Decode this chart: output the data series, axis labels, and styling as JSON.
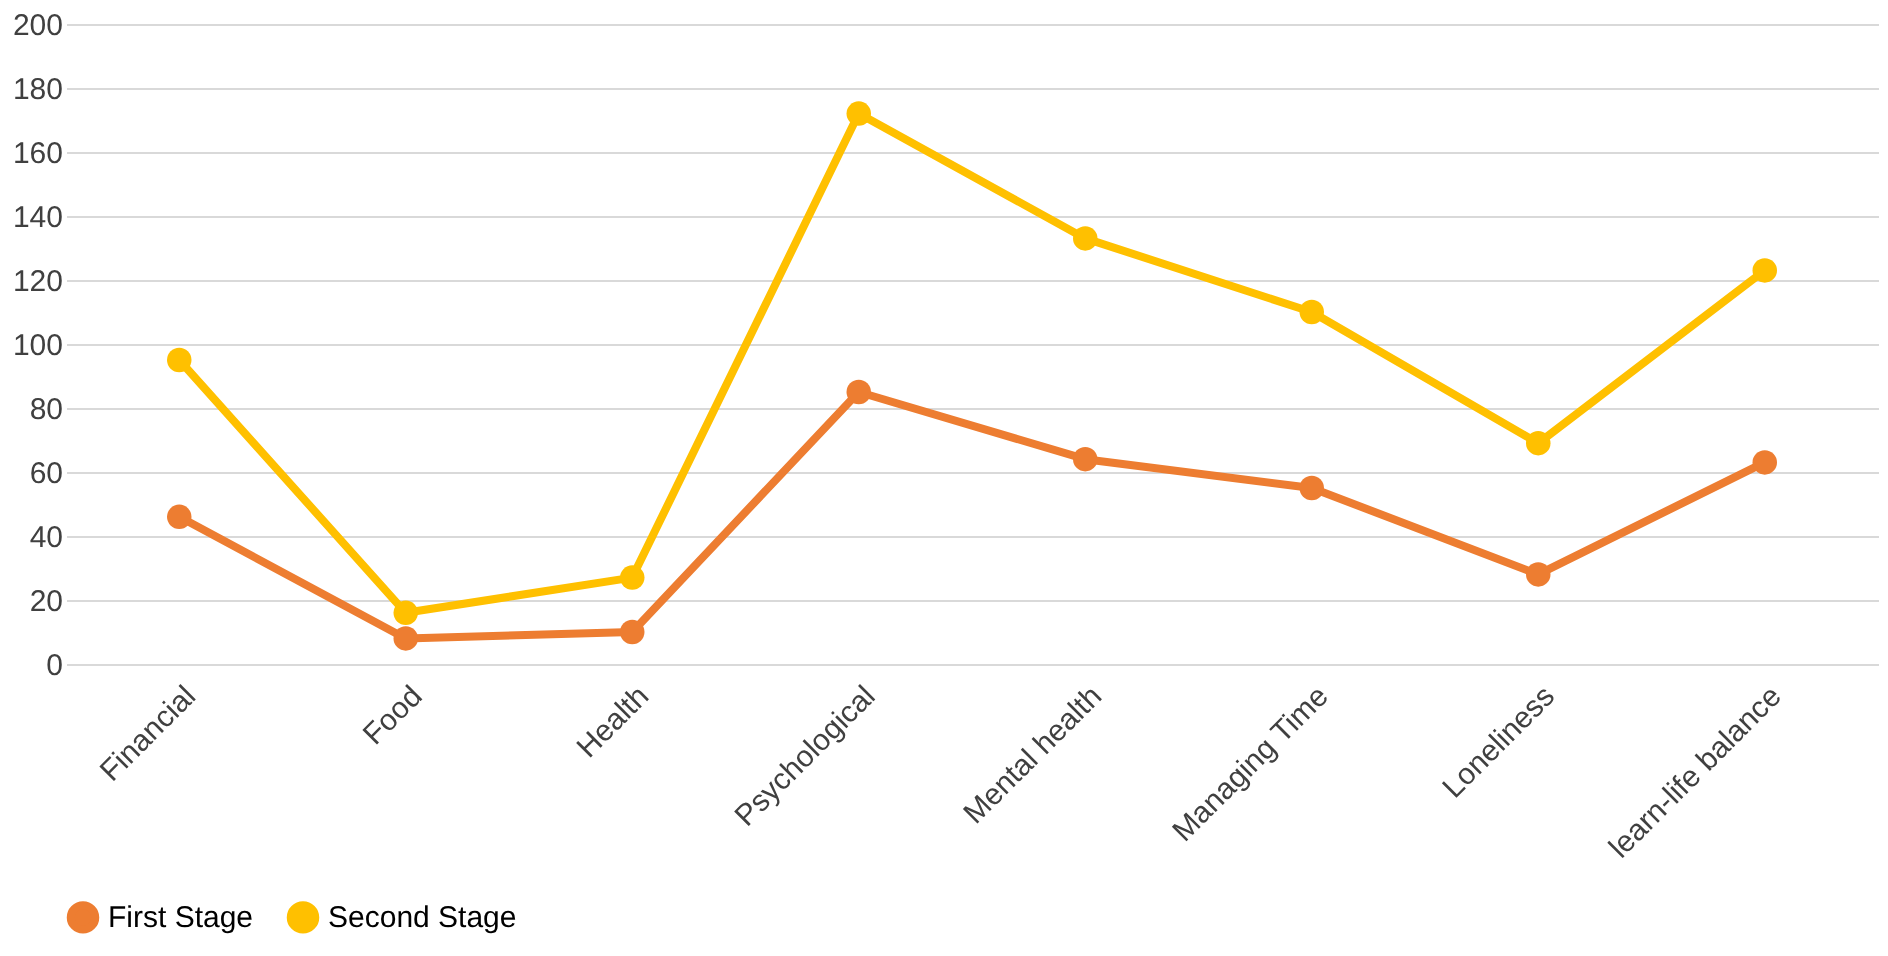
{
  "chart_data": {
    "type": "line",
    "categories": [
      "Financial",
      "Food",
      "Health",
      "Psychological",
      "Mental health",
      "Managing Time",
      "Loneliness",
      "learn-life balance"
    ],
    "series": [
      {
        "name": "First Stage",
        "color": "#ed7d31",
        "values": [
          46,
          8,
          10,
          85,
          64,
          55,
          28,
          63
        ]
      },
      {
        "name": "Second Stage",
        "color": "#ffc000",
        "values": [
          95,
          16,
          27,
          172,
          133,
          110,
          69,
          123
        ]
      }
    ],
    "ylim": [
      0,
      200
    ],
    "yticks": [
      0,
      20,
      40,
      60,
      80,
      100,
      120,
      140,
      160,
      180,
      200
    ],
    "grid": "y",
    "legend": "bottom",
    "marker": "circle",
    "line_style": "solid"
  }
}
